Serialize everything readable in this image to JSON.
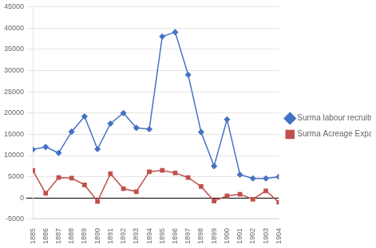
{
  "chart_data": {
    "type": "line",
    "x": [
      1885,
      1886,
      1887,
      1888,
      1889,
      1890,
      1891,
      1892,
      1893,
      1894,
      1895,
      1896,
      1897,
      1898,
      1899,
      1900,
      1901,
      1902,
      1903,
      1904
    ],
    "series": [
      {
        "name": "Surma labour recruitment",
        "color": "#4472C4",
        "marker": "diamond",
        "values": [
          11400,
          12000,
          10600,
          15600,
          19200,
          11500,
          17500,
          20000,
          16500,
          16200,
          38000,
          39000,
          29000,
          15500,
          7500,
          18500,
          5500,
          4600,
          4600,
          5000
        ]
      },
      {
        "name": "Surma Acreage Expansion",
        "color": "#C0504D",
        "marker": "square",
        "values": [
          6500,
          1100,
          4800,
          4700,
          3100,
          -800,
          5700,
          2200,
          1500,
          6200,
          6500,
          5900,
          4800,
          2700,
          -700,
          500,
          900,
          -300,
          1700,
          -1000
        ]
      }
    ],
    "xlim": [
      1885,
      1904
    ],
    "xticks": [
      1885,
      1886,
      1887,
      1888,
      1889,
      1890,
      1891,
      1892,
      1893,
      1894,
      1895,
      1896,
      1897,
      1898,
      1899,
      1900,
      1901,
      1902,
      1903,
      1904
    ],
    "ylim": [
      -5000,
      45000
    ],
    "yticks": [
      -5000,
      0,
      5000,
      10000,
      15000,
      20000,
      25000,
      30000,
      35000,
      40000,
      45000
    ],
    "grid": "y",
    "legend": "right"
  }
}
